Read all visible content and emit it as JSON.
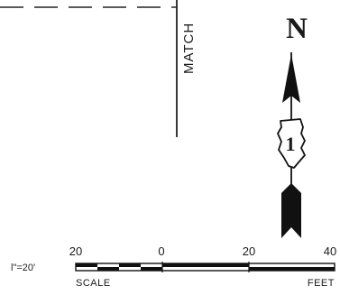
{
  "match_line": {
    "label": "MATCH"
  },
  "north_arrow": {
    "letter": "N",
    "route_shield_number": "1"
  },
  "scale_bar": {
    "ratio_label": "l\"=20'",
    "tick_labels": [
      "20",
      "0",
      "20",
      "40"
    ],
    "left_caption": "SCALE",
    "right_caption": "FEET"
  }
}
